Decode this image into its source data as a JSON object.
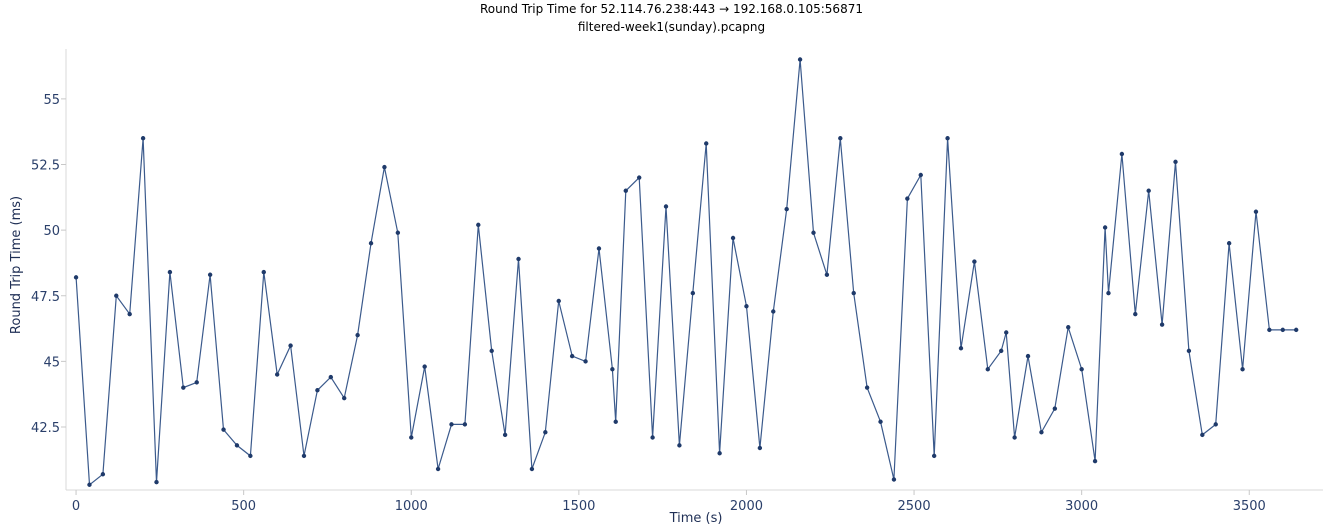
{
  "chart_data": {
    "type": "line",
    "title": "Round Trip Time for 52.114.76.238:443 → 192.168.0.105:56871",
    "subtitle": "filtered-week1(sunday).pcapng",
    "xlabel": "Time (s)",
    "ylabel": "Round Trip Time (ms)",
    "xlim": [
      -30,
      3720
    ],
    "ylim": [
      40.1,
      56.9
    ],
    "x_ticks": [
      0,
      500,
      1000,
      1500,
      2000,
      2500,
      3000,
      3500
    ],
    "x_tick_labels": [
      "0",
      "500",
      "1000",
      "1500",
      "2000",
      "2500",
      "3000",
      "3500"
    ],
    "y_ticks": [
      42.5,
      45,
      47.5,
      50,
      52.5,
      55
    ],
    "y_tick_labels": [
      "42.5",
      "45",
      "47.5",
      "50",
      "52.5",
      "55"
    ],
    "grid": false,
    "line_color": "#3b5a8c",
    "marker_color": "#1f3a6a",
    "series": [
      {
        "x": [
          0,
          40,
          80,
          120,
          160,
          200,
          240,
          280,
          320,
          360,
          400,
          440,
          480,
          520,
          560,
          600,
          640,
          680,
          720,
          760,
          800,
          840,
          880,
          920,
          960,
          1000,
          1040,
          1080,
          1120,
          1160,
          1200,
          1240,
          1280,
          1320,
          1360,
          1400,
          1440,
          1480,
          1520,
          1560,
          1600,
          1610,
          1640,
          1680,
          1720,
          1760,
          1800,
          1840,
          1880,
          1920,
          1960,
          2000,
          2040,
          2080,
          2120,
          2160,
          2200,
          2240,
          2280,
          2320,
          2360,
          2400,
          2440,
          2480,
          2520,
          2560,
          2600,
          2640,
          2680,
          2720,
          2760,
          2775,
          2800,
          2840,
          2880,
          2920,
          2960,
          3000,
          3040,
          3070,
          3080,
          3120,
          3160,
          3200,
          3240,
          3280,
          3320,
          3360,
          3400,
          3440,
          3480,
          3520,
          3560,
          3600,
          3640
        ],
        "y": [
          48.2,
          40.3,
          40.7,
          47.5,
          46.8,
          53.5,
          40.4,
          48.4,
          44.0,
          44.2,
          48.3,
          42.4,
          41.8,
          41.4,
          48.4,
          44.5,
          45.6,
          41.4,
          43.9,
          44.4,
          43.6,
          46.0,
          49.5,
          52.4,
          49.9,
          42.1,
          44.8,
          40.9,
          42.6,
          42.6,
          50.2,
          45.4,
          42.2,
          48.9,
          40.9,
          42.3,
          47.3,
          45.2,
          45.0,
          49.3,
          44.7,
          42.7,
          51.5,
          52.0,
          42.1,
          50.9,
          41.8,
          47.6,
          53.3,
          41.5,
          49.7,
          47.1,
          41.7,
          46.9,
          50.8,
          56.5,
          49.9,
          48.3,
          53.5,
          47.6,
          44.0,
          42.7,
          40.5,
          51.2,
          52.1,
          41.4,
          53.5,
          45.5,
          48.8,
          44.7,
          45.4,
          46.1,
          42.1,
          45.2,
          42.3,
          43.2,
          46.3,
          44.7,
          41.2,
          50.1,
          47.6,
          52.9,
          46.8,
          51.5,
          46.4,
          52.6,
          45.4,
          42.2,
          42.6,
          49.5,
          44.7,
          50.7,
          46.2,
          46.2,
          46.2
        ]
      }
    ]
  }
}
